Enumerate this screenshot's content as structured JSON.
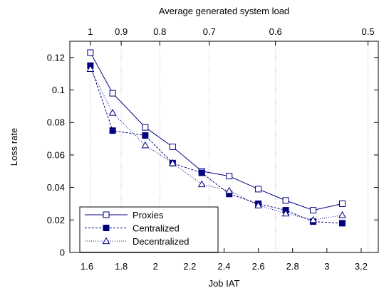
{
  "colors": {
    "series": "#000080",
    "grid": "#b8b8b8",
    "axis": "#000000"
  },
  "chart_data": {
    "type": "line",
    "title": "",
    "xlabel": "Job IAT",
    "ylabel": "Loss rate",
    "x2label": "Average generated system load",
    "xlim": [
      1.5,
      3.3
    ],
    "ylim": [
      0,
      0.13
    ],
    "xticks": [
      1.6,
      1.8,
      2.0,
      2.2,
      2.4,
      2.6,
      2.8,
      3.0,
      3.2
    ],
    "xtick_labels": [
      "1.6",
      "1.8",
      "2",
      "2.2",
      "2.4",
      "2.6",
      "2.8",
      "3",
      "3.2"
    ],
    "yticks": [
      0,
      0.02,
      0.04,
      0.06,
      0.08,
      0.1,
      0.12
    ],
    "ytick_labels": [
      "0",
      "0.02",
      "0.04",
      "0.06",
      "0.08",
      "0.1",
      "0.12"
    ],
    "x2_ticks": [
      {
        "x": 1.62,
        "label": "1"
      },
      {
        "x": 1.8,
        "label": "0.9"
      },
      {
        "x": 2.025,
        "label": "0.8"
      },
      {
        "x": 2.314,
        "label": "0.7"
      },
      {
        "x": 2.7,
        "label": "0.6"
      },
      {
        "x": 3.24,
        "label": "0.5"
      }
    ],
    "grid": true,
    "grid_axis": "x",
    "legend_position": "bottom-left",
    "series": [
      {
        "name": "Proxies",
        "marker": "square-open",
        "line_style": "solid",
        "x": [
          1.62,
          1.75,
          1.94,
          2.1,
          2.27,
          2.43,
          2.6,
          2.76,
          2.92,
          3.09
        ],
        "y": [
          0.123,
          0.098,
          0.077,
          0.065,
          0.05,
          0.047,
          0.039,
          0.032,
          0.026,
          0.03
        ]
      },
      {
        "name": "Centralized",
        "marker": "square-filled",
        "line_style": "dashed",
        "x": [
          1.62,
          1.75,
          1.94,
          2.1,
          2.27,
          2.43,
          2.6,
          2.76,
          2.92,
          3.09
        ],
        "y": [
          0.115,
          0.075,
          0.072,
          0.055,
          0.049,
          0.036,
          0.03,
          0.026,
          0.019,
          0.018
        ]
      },
      {
        "name": "Decentralized",
        "marker": "triangle-open",
        "line_style": "dotted",
        "x": [
          1.62,
          1.75,
          1.94,
          2.1,
          2.27,
          2.43,
          2.6,
          2.76,
          2.92,
          3.09
        ],
        "y": [
          0.113,
          0.086,
          0.066,
          0.055,
          0.042,
          0.038,
          0.029,
          0.024,
          0.02,
          0.023
        ]
      }
    ]
  }
}
